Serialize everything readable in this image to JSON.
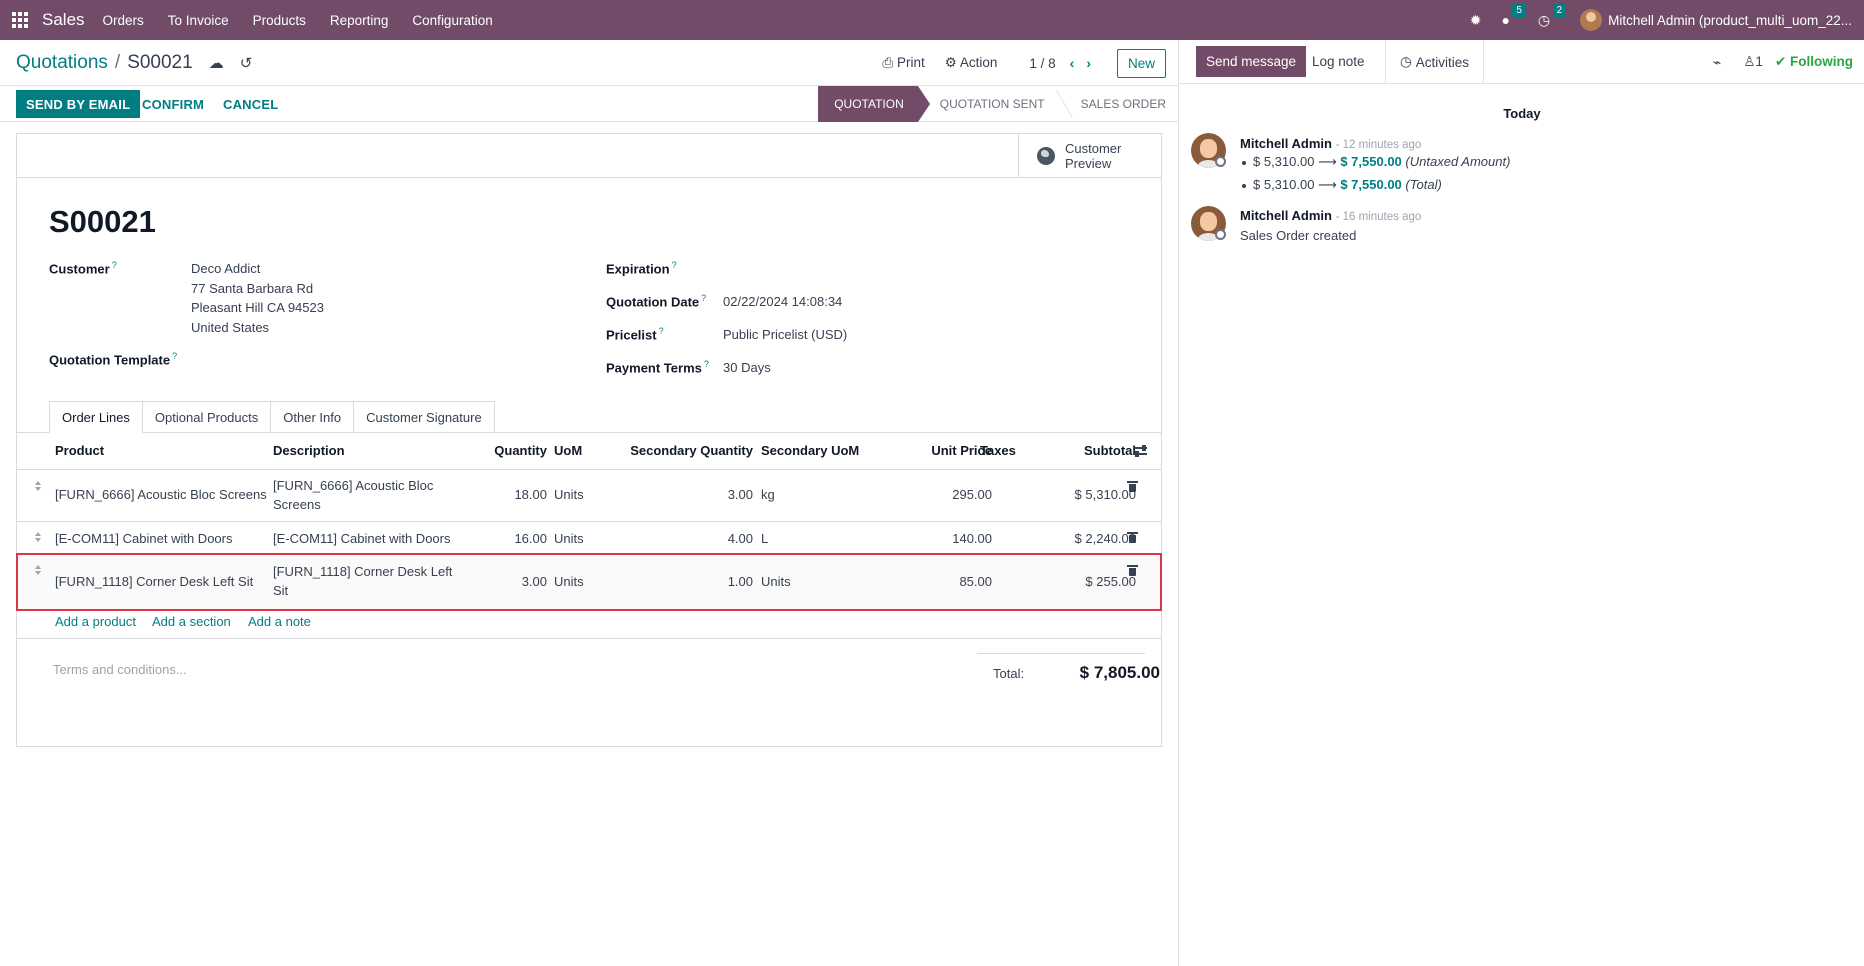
{
  "navbar": {
    "app": "Sales",
    "menu": [
      "Orders",
      "To Invoice",
      "Products",
      "Reporting",
      "Configuration"
    ],
    "messages_count": "5",
    "activities_count": "2",
    "user": "Mitchell Admin (product_multi_uom_22..."
  },
  "control": {
    "breadcrumb_parent": "Quotations",
    "breadcrumb_sep": "/",
    "breadcrumb_current": "S00021",
    "print": "Print",
    "action": "Action",
    "pager": "1 / 8",
    "new": "New"
  },
  "statusbar": {
    "send_email": "SEND BY EMAIL",
    "confirm": "CONFIRM",
    "cancel": "CANCEL",
    "stages": [
      "QUOTATION",
      "QUOTATION SENT",
      "SALES ORDER"
    ],
    "active_stage": "QUOTATION"
  },
  "form": {
    "preview_line1": "Customer",
    "preview_line2": "Preview",
    "title": "S00021",
    "customer_label": "Customer",
    "customer_name": "Deco Addict",
    "customer_street": "77 Santa Barbara Rd",
    "customer_city": "Pleasant Hill CA 94523",
    "customer_country": "United States",
    "template_label": "Quotation Template",
    "expiration_label": "Expiration",
    "date_label": "Quotation Date",
    "date_value": "02/22/2024 14:08:34",
    "pricelist_label": "Pricelist",
    "pricelist_value": "Public Pricelist (USD)",
    "payment_label": "Payment Terms",
    "payment_value": "30 Days",
    "help_mark": "?"
  },
  "tabs": [
    "Order Lines",
    "Optional Products",
    "Other Info",
    "Customer Signature"
  ],
  "table": {
    "headers": {
      "product": "Product",
      "description": "Description",
      "quantity": "Quantity",
      "uom": "UoM",
      "sec_qty": "Secondary Quantity",
      "sec_uom": "Secondary UoM",
      "price": "Unit Price",
      "taxes": "Taxes",
      "subtotal": "Subtotal"
    },
    "rows": [
      {
        "product": "[FURN_6666] Acoustic Bloc Screens",
        "desc1": "[FURN_6666] Acoustic Bloc",
        "desc2": "Screens",
        "qty": "18.00",
        "uom": "Units",
        "sec_qty": "3.00",
        "sec_uom": "kg",
        "price": "295.00",
        "taxes": "",
        "subtotal": "$ 5,310.00"
      },
      {
        "product": "[E-COM11] Cabinet with Doors",
        "desc1": "[E-COM11] Cabinet with Doors",
        "desc2": "",
        "qty": "16.00",
        "uom": "Units",
        "sec_qty": "4.00",
        "sec_uom": "L",
        "price": "140.00",
        "taxes": "",
        "subtotal": "$ 2,240.00"
      },
      {
        "product": "[FURN_1118] Corner Desk Left Sit",
        "desc1": "[FURN_1118] Corner Desk Left",
        "desc2": "Sit",
        "qty": "3.00",
        "uom": "Units",
        "sec_qty": "1.00",
        "sec_uom": "Units",
        "price": "85.00",
        "taxes": "",
        "subtotal": "$ 255.00"
      }
    ],
    "add_product": "Add a product",
    "add_section": "Add a section",
    "add_note": "Add a note",
    "terms_placeholder": "Terms and conditions...",
    "total_label": "Total:",
    "total_value": "$ 7,805.00"
  },
  "chatter": {
    "send_message": "Send message",
    "log_note": "Log note",
    "activities": "Activities",
    "followers": "1",
    "following": "Following",
    "today": "Today",
    "messages": [
      {
        "author": "Mitchell Admin",
        "time": "- 12 minutes ago",
        "tracking": [
          {
            "old": "$ 5,310.00",
            "arrow": "⟶",
            "new": "$ 7,550.00",
            "field": "(Untaxed Amount)"
          },
          {
            "old": "$ 5,310.00",
            "arrow": "⟶",
            "new": "$ 7,550.00",
            "field": "(Total)"
          }
        ]
      },
      {
        "author": "Mitchell Admin",
        "time": "- 16 minutes ago",
        "body": "Sales Order created"
      }
    ]
  },
  "colors": {
    "brand": "#714B67",
    "accent": "#017E84",
    "highlight": "#dc3545",
    "following": "#28a745"
  }
}
